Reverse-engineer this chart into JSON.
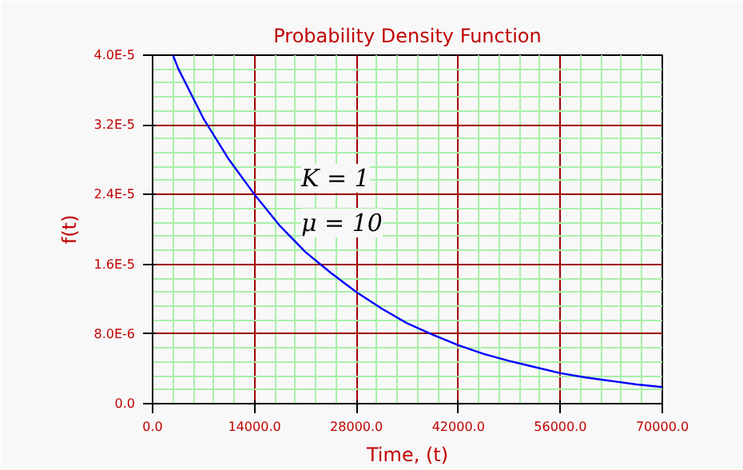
{
  "chart_data": {
    "type": "line",
    "title": "Probability Density Function",
    "xlabel": "Time, (t)",
    "ylabel": "f(t)",
    "x": [
      2800,
      3500,
      7000,
      10500,
      14000,
      17500,
      21000,
      24500,
      28000,
      31500,
      35000,
      38500,
      42000,
      45500,
      49000,
      52500,
      56000,
      59500,
      63000,
      66500,
      70000
    ],
    "series": [
      {
        "color": "#0000ff",
        "values": [
          4e-05,
          3.85e-05,
          3.27e-05,
          2.8e-05,
          2.4e-05,
          2.04e-05,
          1.74e-05,
          1.5e-05,
          1.28e-05,
          1.09e-05,
          9.2e-06,
          7.9e-06,
          6.7e-06,
          5.7e-06,
          4.9e-06,
          4.2e-06,
          3.5e-06,
          3e-06,
          2.6e-06,
          2.2e-06,
          1.9e-06
        ]
      }
    ],
    "xlim": [
      0,
      70000
    ],
    "ylim": [
      0,
      4e-05
    ],
    "xticks": [
      {
        "value": 0,
        "label": "0.0"
      },
      {
        "value": 2800,
        "label": null
      },
      {
        "value": 5600,
        "label": null
      },
      {
        "value": 8400,
        "label": null
      },
      {
        "value": 11200,
        "label": null
      },
      {
        "value": 14000,
        "label": "14000.0"
      },
      {
        "value": 16800,
        "label": null
      },
      {
        "value": 19600,
        "label": null
      },
      {
        "value": 22400,
        "label": null
      },
      {
        "value": 25200,
        "label": null
      },
      {
        "value": 28000,
        "label": "28000.0"
      },
      {
        "value": 30800,
        "label": null
      },
      {
        "value": 33600,
        "label": null
      },
      {
        "value": 36400,
        "label": null
      },
      {
        "value": 39200,
        "label": null
      },
      {
        "value": 42000,
        "label": "42000.0"
      },
      {
        "value": 44800,
        "label": null
      },
      {
        "value": 47600,
        "label": null
      },
      {
        "value": 50400,
        "label": null
      },
      {
        "value": 53200,
        "label": null
      },
      {
        "value": 56000,
        "label": "56000.0"
      },
      {
        "value": 58800,
        "label": null
      },
      {
        "value": 61600,
        "label": null
      },
      {
        "value": 64400,
        "label": null
      },
      {
        "value": 67200,
        "label": null
      },
      {
        "value": 70000,
        "label": "70000.0"
      }
    ],
    "yticks": [
      {
        "value": 0,
        "label": "0.0"
      },
      {
        "value": 1.6e-06,
        "label": null
      },
      {
        "value": 3.2e-06,
        "label": null
      },
      {
        "value": 4.8e-06,
        "label": null
      },
      {
        "value": 6.4e-06,
        "label": null
      },
      {
        "value": 8e-06,
        "label": "8.0E-6"
      },
      {
        "value": 9.6e-06,
        "label": null
      },
      {
        "value": 1.12e-05,
        "label": null
      },
      {
        "value": 1.28e-05,
        "label": null
      },
      {
        "value": 1.44e-05,
        "label": null
      },
      {
        "value": 1.6e-05,
        "label": "1.6E-5"
      },
      {
        "value": 1.76e-05,
        "label": null
      },
      {
        "value": 1.92e-05,
        "label": null
      },
      {
        "value": 2.08e-05,
        "label": null
      },
      {
        "value": 2.24e-05,
        "label": null
      },
      {
        "value": 2.4e-05,
        "label": "2.4E-5"
      },
      {
        "value": 2.56e-05,
        "label": null
      },
      {
        "value": 2.72e-05,
        "label": null
      },
      {
        "value": 2.88e-05,
        "label": null
      },
      {
        "value": 3.04e-05,
        "label": null
      },
      {
        "value": 3.2e-05,
        "label": "3.2E-5"
      },
      {
        "value": 3.36e-05,
        "label": null
      },
      {
        "value": 3.52e-05,
        "label": null
      },
      {
        "value": 3.68e-05,
        "label": null
      },
      {
        "value": 3.84e-05,
        "label": null
      },
      {
        "value": 4e-05,
        "label": "4.0E-5"
      }
    ],
    "grid": true,
    "marker": "none",
    "line_style": "solid",
    "annotations": [
      "K = 1",
      "μ = 10"
    ]
  }
}
